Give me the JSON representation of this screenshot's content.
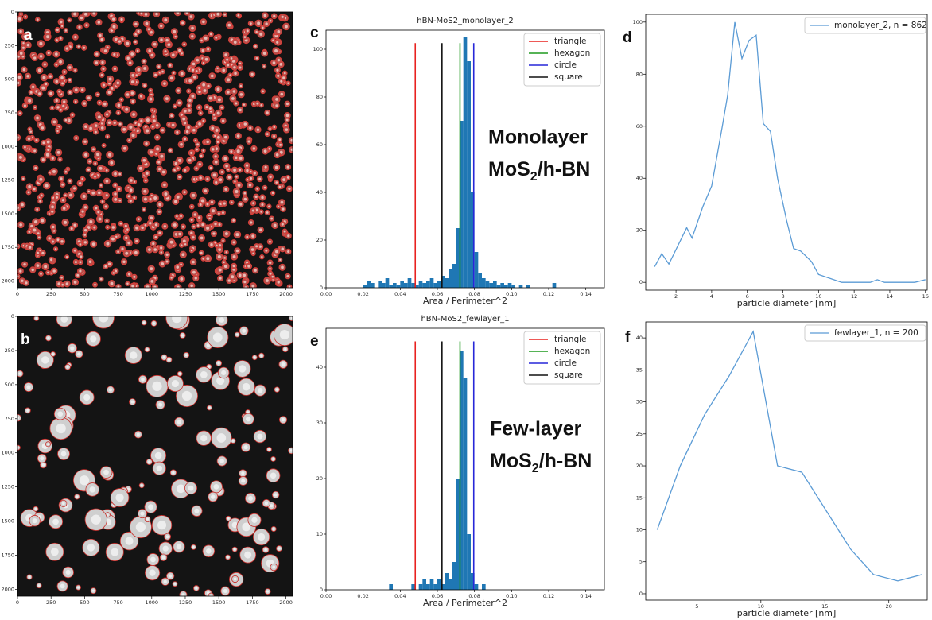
{
  "chart_data": [
    {
      "type": "image",
      "label": "a",
      "xlim": [
        0,
        2050
      ],
      "ylim": [
        2050,
        0
      ],
      "xticks": [
        0,
        250,
        500,
        750,
        1000,
        1250,
        1500,
        1750,
        2000
      ],
      "yticks": [
        0,
        250,
        500,
        750,
        1000,
        1250,
        1500,
        1750,
        2000
      ]
    },
    {
      "type": "image",
      "label": "b",
      "xlim": [
        0,
        2050
      ],
      "ylim": [
        2050,
        0
      ],
      "xticks": [
        0,
        250,
        500,
        750,
        1000,
        1250,
        1500,
        1750,
        2000
      ],
      "yticks": [
        0,
        250,
        500,
        750,
        1000,
        1250,
        1500,
        1750,
        2000
      ]
    },
    {
      "type": "histogram",
      "label": "c",
      "title": "hBN-MoS2_monolayer_2",
      "xlabel": "Area / Perimeter^2",
      "bins": [
        0.02,
        0.022,
        0.024,
        0.026,
        0.028,
        0.03,
        0.032,
        0.034,
        0.036,
        0.038,
        0.04,
        0.042,
        0.044,
        0.046,
        0.048,
        0.05,
        0.052,
        0.054,
        0.056,
        0.058,
        0.06,
        0.062,
        0.064,
        0.066,
        0.068,
        0.07,
        0.072,
        0.074,
        0.076,
        0.078,
        0.08,
        0.082,
        0.084,
        0.086,
        0.088,
        0.09,
        0.092,
        0.094,
        0.096,
        0.098,
        0.1,
        0.102,
        0.104,
        0.106,
        0.108,
        0.11,
        0.112,
        0.114,
        0.116,
        0.118,
        0.12,
        0.122,
        0.124,
        0.126
      ],
      "values": [
        1,
        3,
        2,
        0,
        3,
        2,
        4,
        1,
        2,
        1,
        3,
        2,
        4,
        2,
        1,
        3,
        2,
        3,
        4,
        2,
        3,
        5,
        4,
        8,
        10,
        25,
        70,
        105,
        95,
        40,
        15,
        6,
        4,
        3,
        2,
        3,
        1,
        2,
        1,
        2,
        1,
        0,
        1,
        0,
        1,
        0,
        0,
        0,
        0,
        0,
        0,
        2,
        0
      ],
      "color": "#1f77b4",
      "xlim": [
        0,
        0.15
      ],
      "ylim": [
        0,
        108
      ],
      "xticks": [
        {
          "value": 0,
          "label": "0.00"
        },
        {
          "value": 0.02,
          "label": "0.02"
        },
        {
          "value": 0.04,
          "label": "0.04"
        },
        {
          "value": 0.06,
          "label": "0.06"
        },
        {
          "value": 0.08,
          "label": "0.08"
        },
        {
          "value": 0.1,
          "label": "0.10"
        },
        {
          "value": 0.12,
          "label": "0.12"
        },
        {
          "value": 0.14,
          "label": "0.14"
        }
      ],
      "yticks": [
        0,
        20,
        40,
        60,
        80,
        100
      ],
      "reference_lines": [
        {
          "name": "triangle",
          "color": "#e8221f",
          "value": 0.0481
        },
        {
          "name": "hexagon",
          "color": "#1f9a1f",
          "value": 0.0722
        },
        {
          "name": "circle",
          "color": "#2727d8",
          "value": 0.0796
        },
        {
          "name": "square",
          "color": "#111111",
          "value": 0.0625
        }
      ],
      "legend": "upper right",
      "annotation": [
        "Monolayer",
        "MoS",
        "2",
        "/h-BN"
      ]
    },
    {
      "type": "line",
      "label": "d",
      "xlabel": "particle diameter [nm]",
      "x": [
        0.8,
        1.2,
        1.6,
        2.6,
        2.9,
        3.5,
        4.0,
        4.6,
        4.9,
        5.3,
        5.7,
        6.1,
        6.5,
        6.9,
        7.3,
        7.7,
        8.2,
        8.6,
        9.0,
        9.6,
        10.0,
        11.3,
        12.9,
        13.3,
        13.7,
        15.4,
        16.0
      ],
      "series": [
        {
          "name": "monolayer_2, n = 862",
          "color": "#5b9bd5",
          "values": [
            6,
            11,
            7,
            21,
            17,
            29,
            37,
            60,
            72,
            100,
            86,
            93,
            95,
            61,
            58,
            40,
            24,
            13,
            12,
            8,
            3,
            0,
            0,
            1,
            0,
            0,
            1
          ]
        }
      ],
      "xlim": [
        0.3,
        16.1
      ],
      "ylim": [
        -3,
        103
      ],
      "xticks": [
        2,
        4,
        6,
        8,
        10,
        12,
        14,
        16
      ],
      "yticks": [
        0,
        20,
        40,
        60,
        80,
        100
      ],
      "legend": "upper right"
    },
    {
      "type": "histogram",
      "label": "e",
      "title": "hBN-MoS2_fewlayer_1",
      "xlabel": "Area / Perimeter^2",
      "bins": [
        0.02,
        0.022,
        0.024,
        0.026,
        0.028,
        0.03,
        0.032,
        0.034,
        0.036,
        0.038,
        0.04,
        0.042,
        0.044,
        0.046,
        0.048,
        0.05,
        0.052,
        0.054,
        0.056,
        0.058,
        0.06,
        0.062,
        0.064,
        0.066,
        0.068,
        0.07,
        0.072,
        0.074,
        0.076,
        0.078,
        0.08,
        0.082,
        0.084,
        0.086,
        0.088,
        0.09,
        0.092,
        0.094,
        0.096,
        0.098,
        0.1,
        0.102,
        0.104,
        0.106,
        0.108,
        0.11,
        0.112,
        0.114,
        0.116,
        0.118,
        0.12,
        0.122,
        0.124,
        0.126
      ],
      "values": [
        0,
        0,
        0,
        0,
        0,
        0,
        0,
        1,
        0,
        0,
        0,
        0,
        0,
        1,
        0,
        1,
        2,
        1,
        2,
        1,
        2,
        1,
        3,
        2,
        5,
        20,
        43,
        38,
        10,
        3,
        1,
        0,
        1,
        0,
        0,
        0,
        0,
        0,
        0,
        0,
        0,
        0,
        0,
        0,
        0,
        0,
        0,
        0,
        0,
        0,
        0,
        0,
        0
      ],
      "color": "#1f77b4",
      "xlim": [
        0,
        0.15
      ],
      "ylim": [
        0,
        47
      ],
      "xticks": [
        {
          "value": 0,
          "label": "0.00"
        },
        {
          "value": 0.02,
          "label": "0.02"
        },
        {
          "value": 0.04,
          "label": "0.04"
        },
        {
          "value": 0.06,
          "label": "0.06"
        },
        {
          "value": 0.08,
          "label": "0.08"
        },
        {
          "value": 0.1,
          "label": "0.10"
        },
        {
          "value": 0.12,
          "label": "0.12"
        },
        {
          "value": 0.14,
          "label": "0.14"
        }
      ],
      "yticks": [
        0,
        10,
        20,
        30,
        40
      ],
      "reference_lines": [
        {
          "name": "triangle",
          "color": "#e8221f",
          "value": 0.0481
        },
        {
          "name": "hexagon",
          "color": "#1f9a1f",
          "value": 0.0722
        },
        {
          "name": "circle",
          "color": "#2727d8",
          "value": 0.0796
        },
        {
          "name": "square",
          "color": "#111111",
          "value": 0.0625
        }
      ],
      "legend": "upper right",
      "annotation": [
        "Few-layer",
        "MoS",
        "2",
        "/h-BN"
      ]
    },
    {
      "type": "line",
      "label": "f",
      "xlabel": "particle diameter [nm]",
      "x": [
        1.9,
        3.7,
        5.6,
        7.5,
        9.4,
        11.3,
        13.2,
        15.1,
        17.0,
        18.8,
        20.7,
        22.6
      ],
      "series": [
        {
          "name": "fewlayer_1, n = 200",
          "color": "#5b9bd5",
          "values": [
            10,
            20,
            28,
            34,
            41,
            20,
            19,
            13,
            7,
            3,
            2,
            3
          ]
        }
      ],
      "xlim": [
        1,
        23
      ],
      "ylim": [
        -1,
        42.5
      ],
      "xticks": [
        5,
        10,
        15,
        20
      ],
      "yticks": [
        0,
        5,
        10,
        15,
        20,
        25,
        30,
        35,
        40
      ],
      "legend": "upper right"
    }
  ]
}
